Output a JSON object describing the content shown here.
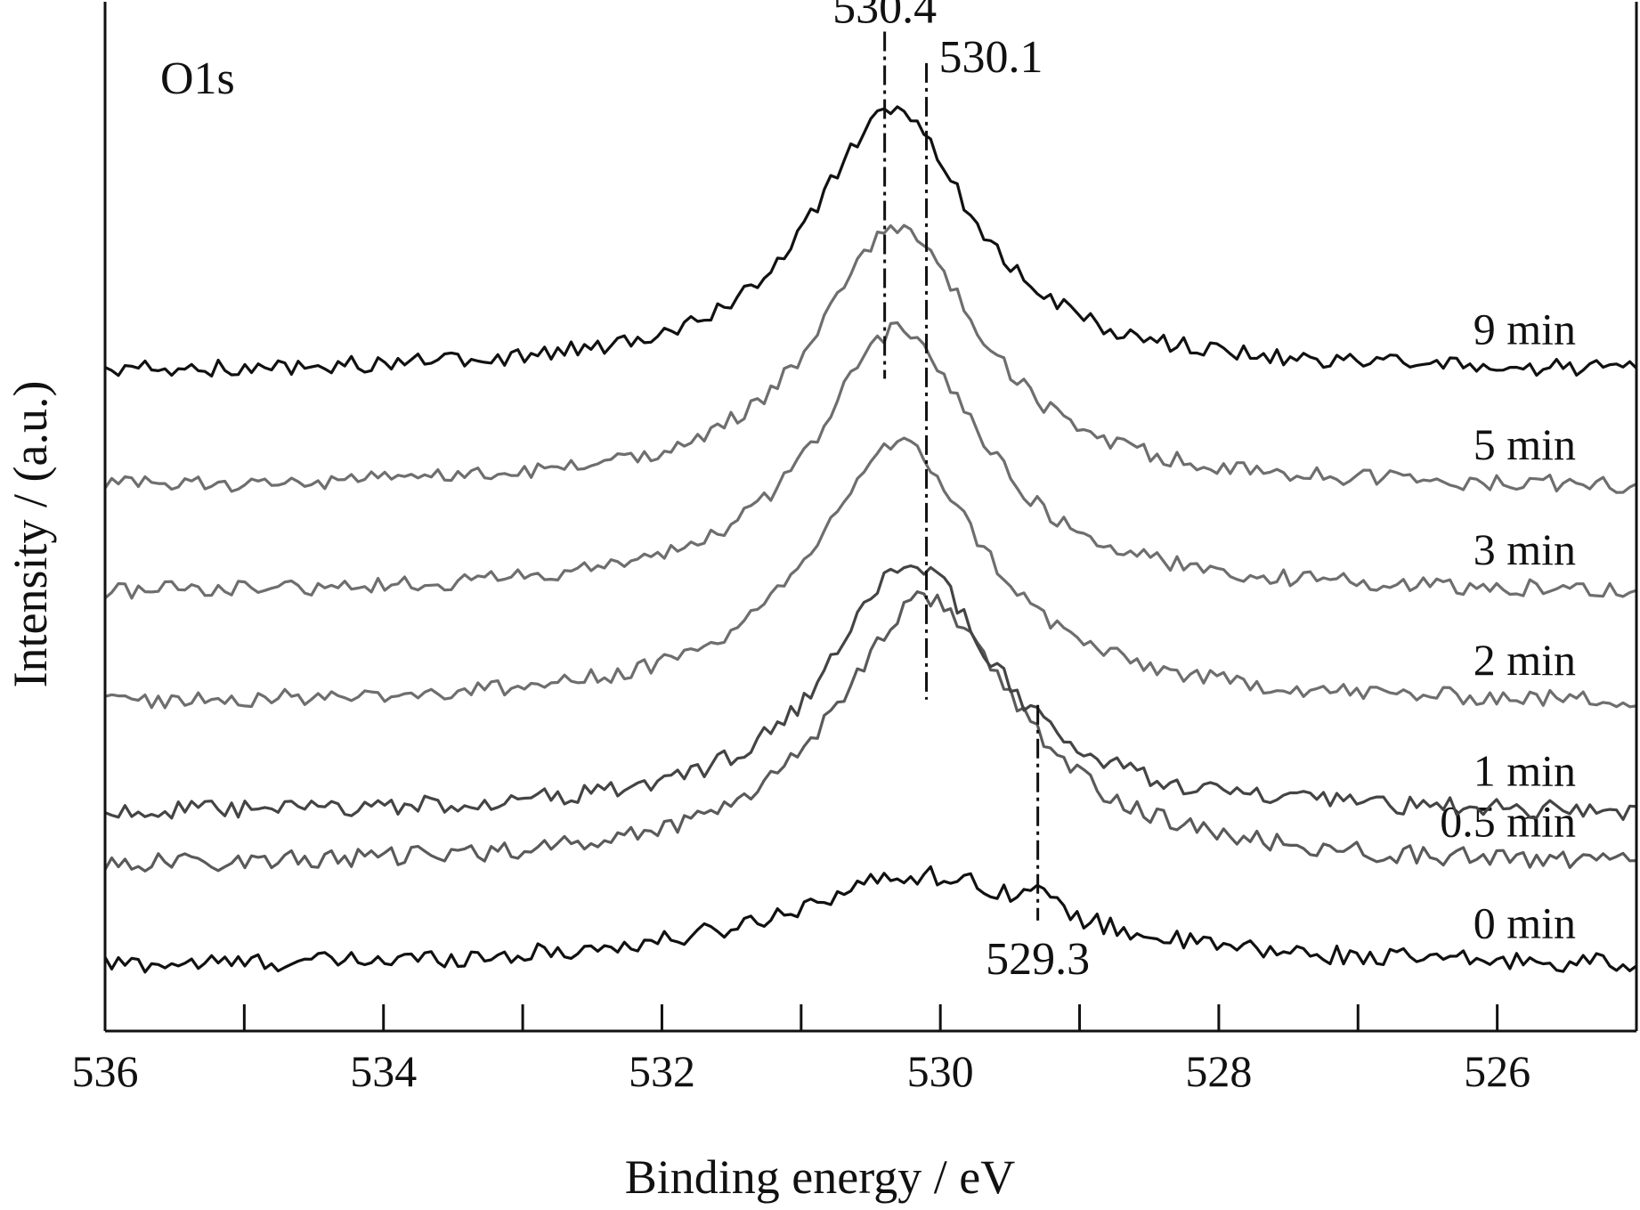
{
  "chart_data": {
    "type": "line",
    "title": "",
    "panel_label": "O1s",
    "xlabel": "Binding energy / eV",
    "ylabel": "Intensity / (a.u.)",
    "xlim": [
      536,
      525
    ],
    "x_reversed": true,
    "ylim": [
      -0.6,
      9.2
    ],
    "y_ticks_labeled": false,
    "x_major_ticks": [
      536,
      534,
      532,
      530,
      528,
      526
    ],
    "x_minor_ticks": [
      535,
      533,
      531,
      529,
      527
    ],
    "x_tick_labels": [
      "536",
      "534",
      "532",
      "530",
      "528",
      "526"
    ],
    "grid": false,
    "legend": "none (series labeled inline at right)",
    "series": [
      {
        "name": "0 min",
        "color": "#111111",
        "offset": 0.0,
        "amplitude": 1.1,
        "noise": 0.09,
        "peaks": [
          {
            "center": 530.15,
            "width": 1.2,
            "height": 1.0
          },
          {
            "center": 529.3,
            "width": 0.12,
            "height": 0.18
          }
        ]
      },
      {
        "name": "0.5 min",
        "color": "#5a5a5a",
        "offset": 0.95,
        "amplitude": 3.2,
        "noise": 0.09,
        "peaks": [
          {
            "center": 530.1,
            "width": 0.8,
            "height": 1.0
          }
        ]
      },
      {
        "name": "1 min",
        "color": "#444444",
        "offset": 1.45,
        "amplitude": 3.0,
        "noise": 0.09,
        "peaks": [
          {
            "center": 530.2,
            "width": 0.72,
            "height": 1.0
          }
        ]
      },
      {
        "name": "2 min",
        "color": "#6e6e6e",
        "offset": 2.5,
        "amplitude": 3.1,
        "noise": 0.08,
        "peaks": [
          {
            "center": 530.3,
            "width": 0.75,
            "height": 1.0
          }
        ]
      },
      {
        "name": "3 min",
        "color": "#6e6e6e",
        "offset": 3.55,
        "amplitude": 3.15,
        "noise": 0.08,
        "peaks": [
          {
            "center": 530.3,
            "width": 0.72,
            "height": 1.0
          }
        ]
      },
      {
        "name": "5 min",
        "color": "#6e6e6e",
        "offset": 4.55,
        "amplitude": 3.1,
        "noise": 0.08,
        "peaks": [
          {
            "center": 530.3,
            "width": 0.72,
            "height": 1.0
          }
        ]
      },
      {
        "name": "9 min",
        "color": "#111111",
        "offset": 5.65,
        "amplitude": 3.1,
        "noise": 0.08,
        "peaks": [
          {
            "center": 530.35,
            "width": 0.72,
            "height": 1.0
          }
        ]
      }
    ],
    "reference_lines": [
      {
        "label": "530.4",
        "x": 530.4,
        "y_from": 5.6,
        "y_to": 8.9,
        "label_position": "top"
      },
      {
        "label": "530.1",
        "x": 530.1,
        "y_from": 2.55,
        "y_to": 8.6,
        "label_position": "top-right"
      },
      {
        "label": "529.3",
        "x": 529.3,
        "y_from": 0.45,
        "y_to": 2.5,
        "label_position": "bottom"
      }
    ]
  }
}
